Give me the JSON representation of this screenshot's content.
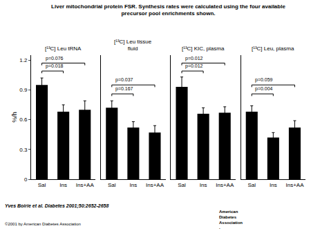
{
  "title": "Liver mitochondrial protein FSR. Synthesis rates were calculated using the four available\nprecursor pool enrichments shown.",
  "footnote": "Yves Boirie et al. Diabetes 2001;50:2652-2658",
  "copyright": "©2001 by American Diabetes Association",
  "logo_text": [
    "American",
    "Diabetes",
    "Association",
    "."
  ],
  "chart_data": [
    {
      "type": "bar",
      "title": "[¹³C] Leu tRNA",
      "categories": [
        "Sal",
        "Ins",
        "Ins+AA"
      ],
      "values": [
        0.95,
        0.68,
        0.7
      ],
      "errors": [
        0.07,
        0.07,
        0.09
      ],
      "color": "#000000",
      "ylabel": "%/h",
      "ylim": [
        0,
        1.25
      ],
      "yticks": [
        0,
        0.3,
        0.6,
        0.9,
        1.2
      ],
      "brackets": [
        {
          "from": "Sal",
          "to": "Ins",
          "y": 1.09,
          "text": "p=0.018"
        },
        {
          "from": "Sal",
          "to": "Ins+AA",
          "y": 1.17,
          "text": "p=0.076"
        }
      ]
    },
    {
      "type": "bar",
      "title": "[¹³C] Leu tissue\nfluid",
      "categories": [
        "Sal",
        "Ins",
        "Ins+AA"
      ],
      "values": [
        0.72,
        0.52,
        0.47
      ],
      "errors": [
        0.07,
        0.06,
        0.07
      ],
      "color": "#000000",
      "ylim": [
        0,
        1.25
      ],
      "tick_labels": "x",
      "brackets": [
        {
          "from": "Sal",
          "to": "Ins",
          "y": 0.86,
          "text": "p=0.167"
        },
        {
          "from": "Sal",
          "to": "Ins+AA",
          "y": 0.95,
          "text": "p=0.037"
        }
      ]
    },
    {
      "type": "bar",
      "title": "[¹³C] KIC, plasma",
      "categories": [
        "Sal",
        "Ins",
        "Ins+AA"
      ],
      "values": [
        0.93,
        0.66,
        0.67
      ],
      "errors": [
        0.1,
        0.06,
        0.06
      ],
      "color": "#000000",
      "ylim": [
        0,
        1.25
      ],
      "tick_labels": "x",
      "brackets": [
        {
          "from": "Sal",
          "to": "Ins",
          "y": 1.09,
          "text": "p=0.012"
        },
        {
          "from": "Sal",
          "to": "Ins+AA",
          "y": 1.17,
          "text": "p=0.012"
        }
      ]
    },
    {
      "type": "bar",
      "title": "[¹³C] Leu, plasma",
      "categories": [
        "Sal",
        "Ins",
        "Ins+AA"
      ],
      "values": [
        0.68,
        0.42,
        0.52
      ],
      "errors": [
        0.06,
        0.05,
        0.07
      ],
      "color": "#000000",
      "ylim": [
        0,
        1.25
      ],
      "tick_labels": "x",
      "brackets": [
        {
          "from": "Sal",
          "to": "Ins",
          "y": 0.86,
          "text": "p=0.004"
        },
        {
          "from": "Sal",
          "to": "Ins+AA",
          "y": 0.95,
          "text": "p=0.059"
        }
      ]
    }
  ]
}
